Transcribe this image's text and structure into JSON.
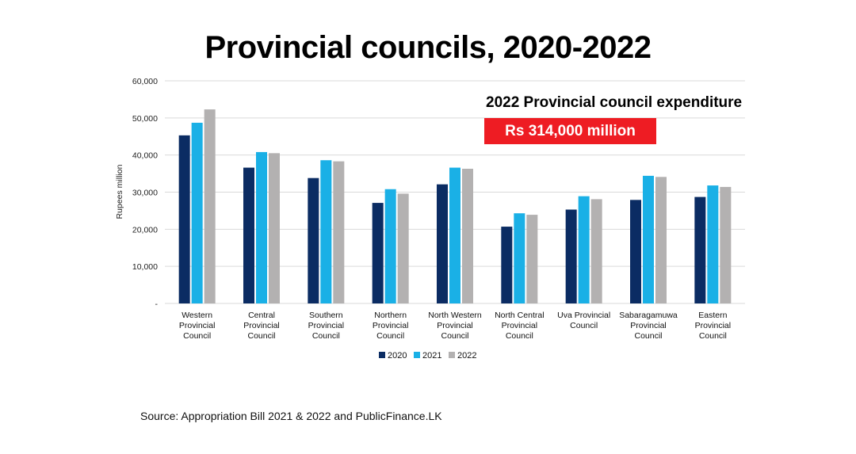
{
  "colors": {
    "2020": "#0b2c63",
    "2021": "#1ab0e6",
    "2022": "#b3b1b1",
    "badge": "#ee1c23",
    "grid": "#d9d9d9"
  },
  "callout": {
    "heading": "2022 Provincial council expenditure",
    "amount": "Rs 314,000 million"
  },
  "source": "Source: Appropriation Bill 2021 & 2022 and PublicFinance.LK",
  "chart_data": {
    "type": "bar",
    "title": "Provincial councils, 2020-2022",
    "xlabel": "",
    "ylabel": "Rupees million",
    "ylim": [
      0,
      60000
    ],
    "yticks": [
      0,
      10000,
      20000,
      30000,
      40000,
      50000,
      60000
    ],
    "ytick_labels": [
      "-",
      "10,000",
      "20,000",
      "30,000",
      "40,000",
      "50,000",
      "60,000"
    ],
    "grid": true,
    "legend_position": "bottom",
    "categories": [
      [
        "Western",
        "Provincial",
        "Council"
      ],
      [
        "Central",
        "Provincial",
        "Council"
      ],
      [
        "Southern",
        "Provincial",
        "Council"
      ],
      [
        "Northern",
        "Provincial",
        "Council"
      ],
      [
        "North Western",
        "Provincial",
        "Council"
      ],
      [
        "North Central",
        "Provincial",
        "Council"
      ],
      [
        "Uva Provincial",
        "Council"
      ],
      [
        "Sabaragamuwa",
        "Provincial",
        "Council"
      ],
      [
        "Eastern",
        "Provincial",
        "Council"
      ]
    ],
    "series": [
      {
        "name": "2020",
        "values": [
          45300,
          36600,
          33800,
          27100,
          32100,
          20700,
          25300,
          27900,
          28700
        ]
      },
      {
        "name": "2021",
        "values": [
          48700,
          40800,
          38600,
          30800,
          36600,
          24300,
          28900,
          34400,
          31800
        ]
      },
      {
        "name": "2022",
        "values": [
          52300,
          40500,
          38300,
          29600,
          36300,
          23900,
          28100,
          34100,
          31400
        ]
      }
    ]
  }
}
